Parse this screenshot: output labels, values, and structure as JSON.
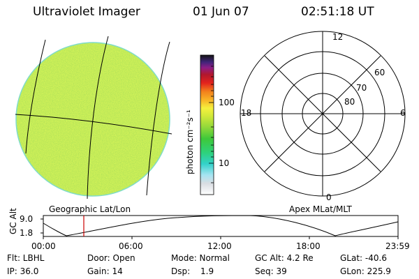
{
  "header": {
    "instrument": "Ultraviolet Imager",
    "date": "01 Jun 07",
    "time": "02:51:18 UT"
  },
  "colorbar": {
    "unit": "photon cm⁻²s⁻¹",
    "tick_100": "100",
    "tick_10": "10"
  },
  "polar_plot": {
    "mlt_labels": {
      "top": "12",
      "left": "18",
      "right": "6",
      "bottom": "0"
    },
    "lat_labels": {
      "l60": "60",
      "l70": "70",
      "l80": "80"
    }
  },
  "captions": {
    "left": "Geographic Lat/Lon",
    "right": "Apex MLat/MLT"
  },
  "altitude_plot": {
    "ylabel": "GC Alt",
    "yticks": {
      "max": "9.0",
      "min": "1.8"
    },
    "xticks": {
      "t0": "00:00",
      "t1": "06:00",
      "t2": "12:00",
      "t3": "18:00",
      "t4": "23:59"
    }
  },
  "status": {
    "filter": "Flt: LBHL",
    "door": "Door: Open",
    "mode": "Mode: Normal",
    "alt": "GC Alt: 4.2 Re",
    "glat": "GLat: -40.6",
    "ip": "IP: 36.0",
    "gain": "Gain: 14",
    "dsp_label": "Dsp:",
    "dsp_value": "1.9",
    "seq": "Seq: 39",
    "glon": "GLon: 225.9"
  },
  "colors": {
    "disk_base": "#a4e42c",
    "grid_line": "#000000",
    "marker": "#cc0000"
  }
}
